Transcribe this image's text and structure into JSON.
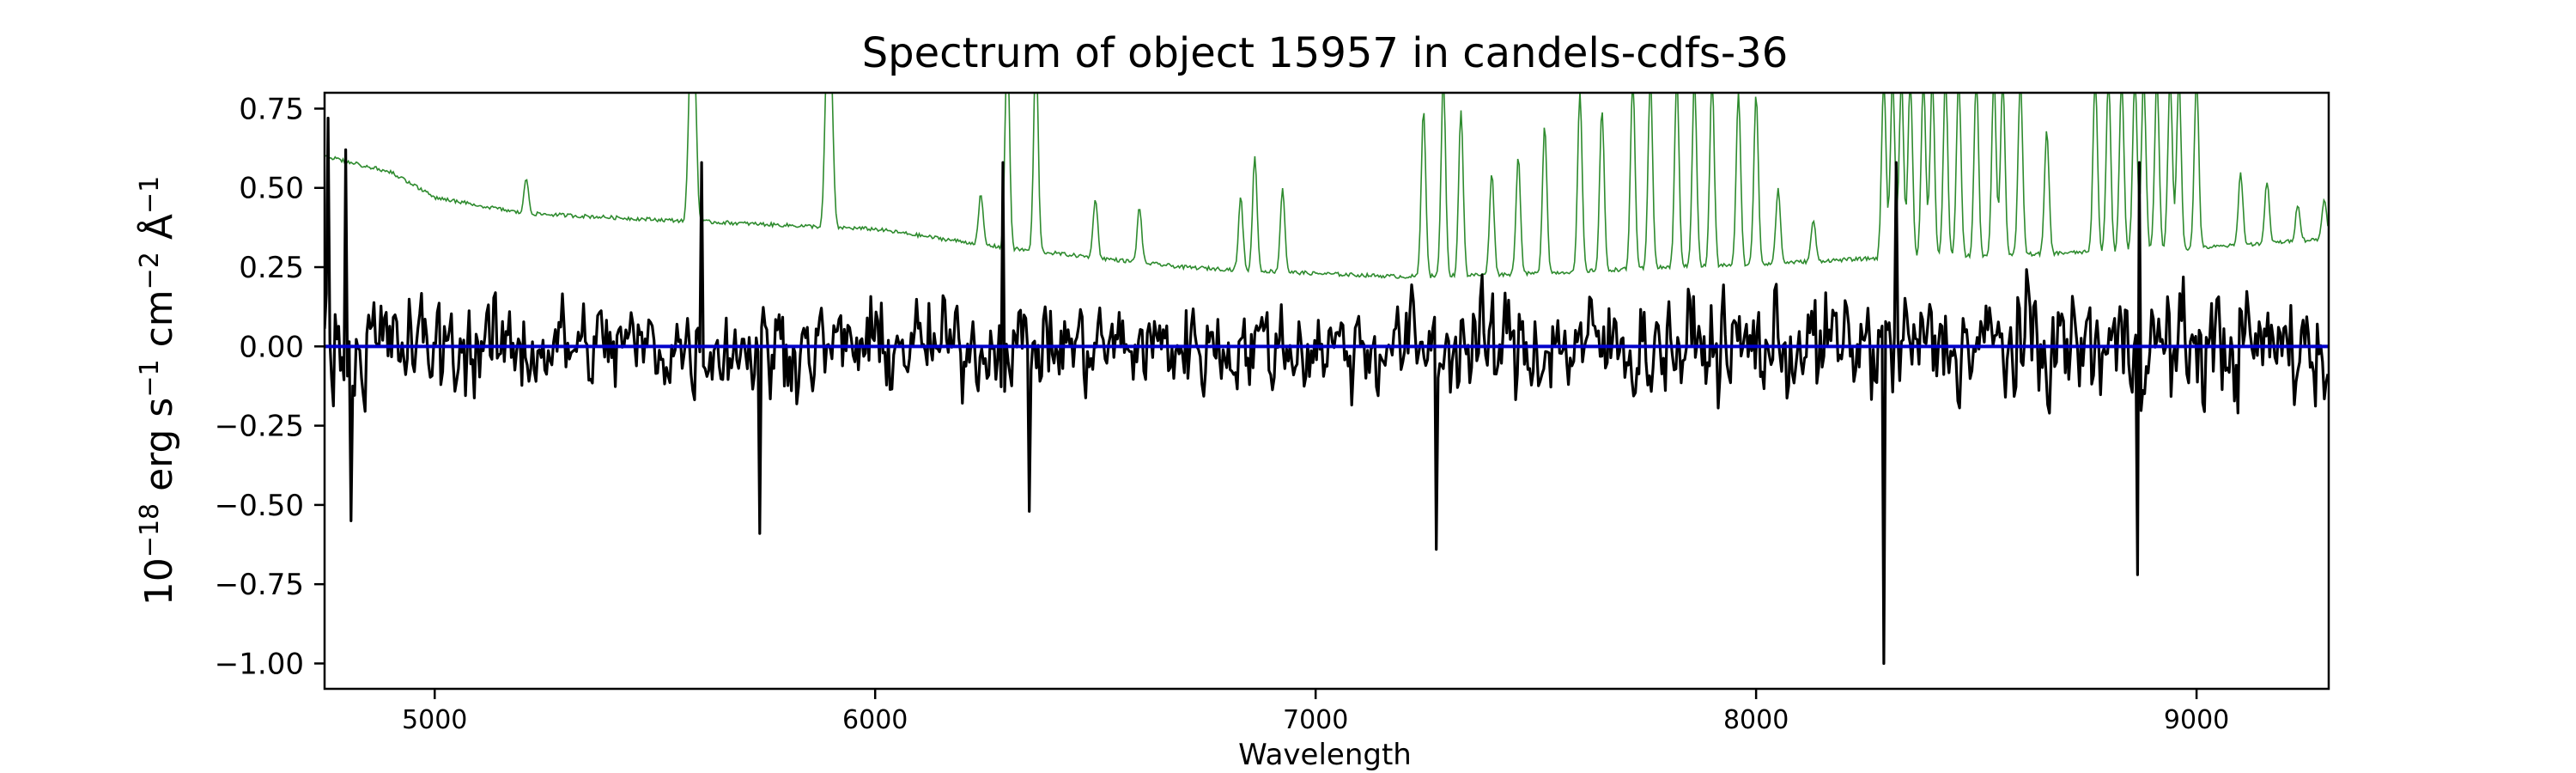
{
  "chart_data": {
    "type": "line",
    "title": "Spectrum of object 15957 in candels-cdfs-36",
    "xlabel": "Wavelength",
    "ylabel_parts": {
      "base": "10",
      "exp1": "−18",
      "erg": " erg s",
      "exp2": "−1",
      "cm": " cm",
      "exp3": "−2",
      "ang": " Å",
      "exp4": "−1"
    },
    "xlim": [
      4750,
      9300
    ],
    "ylim": [
      -1.08,
      0.8
    ],
    "xticks": [
      5000,
      6000,
      7000,
      8000,
      9000
    ],
    "xtick_labels": [
      "5000",
      "6000",
      "7000",
      "8000",
      "9000"
    ],
    "yticks": [
      -1.0,
      -0.75,
      -0.5,
      -0.25,
      0.0,
      0.25,
      0.5,
      0.75
    ],
    "ytick_labels": [
      "−1.00",
      "−0.75",
      "−0.50",
      "−0.25",
      "0.00",
      "0.25",
      "0.50",
      "0.75"
    ],
    "grid": false,
    "series": [
      {
        "role": "flux",
        "color": "#000000",
        "x_start": 4750,
        "x_end": 9300,
        "x_step": 4,
        "noise_anchors": [
          [
            4750,
            0.3
          ],
          [
            5000,
            0.26
          ],
          [
            6000,
            0.22
          ],
          [
            7000,
            0.24
          ],
          [
            7500,
            0.28
          ],
          [
            8000,
            0.26
          ],
          [
            8500,
            0.3
          ],
          [
            9300,
            0.3
          ]
        ],
        "notable_points": [
          [
            4757,
            0.72
          ],
          [
            4800,
            0.62
          ],
          [
            4812,
            -0.55
          ],
          [
            5605,
            0.58
          ],
          [
            5740,
            -0.59
          ],
          [
            6290,
            0.58
          ],
          [
            6350,
            -0.52
          ],
          [
            7275,
            -0.64
          ],
          [
            8290,
            -1.0
          ],
          [
            8320,
            0.58
          ],
          [
            8865,
            -0.72
          ],
          [
            8870,
            0.58
          ]
        ]
      },
      {
        "role": "zero",
        "color": "#0000cc",
        "x": [
          4750,
          9300
        ],
        "y": [
          0.0,
          0.0
        ]
      },
      {
        "role": "error",
        "color": "#2e8b2e",
        "continuum": [
          [
            4750,
            0.6
          ],
          [
            4900,
            0.55
          ],
          [
            5000,
            0.47
          ],
          [
            5200,
            0.42
          ],
          [
            5500,
            0.4
          ],
          [
            6000,
            0.37
          ],
          [
            6100,
            0.35
          ],
          [
            6300,
            0.31
          ],
          [
            6500,
            0.28
          ],
          [
            6700,
            0.25
          ],
          [
            7000,
            0.23
          ],
          [
            7200,
            0.22
          ],
          [
            7500,
            0.23
          ],
          [
            7800,
            0.25
          ],
          [
            8000,
            0.26
          ],
          [
            8300,
            0.28
          ],
          [
            8600,
            0.29
          ],
          [
            9000,
            0.31
          ],
          [
            9300,
            0.34
          ]
        ],
        "spikes": [
          [
            5208,
            0.53
          ],
          [
            5580,
            0.85
          ],
          [
            5590,
            0.85
          ],
          [
            5890,
            0.85
          ],
          [
            5900,
            0.85
          ],
          [
            6240,
            0.48
          ],
          [
            6300,
            0.95
          ],
          [
            6365,
            0.95
          ],
          [
            6500,
            0.47
          ],
          [
            6600,
            0.44
          ],
          [
            6830,
            0.47
          ],
          [
            6862,
            0.6
          ],
          [
            6925,
            0.5
          ],
          [
            7245,
            0.75
          ],
          [
            7290,
            0.85
          ],
          [
            7330,
            0.75
          ],
          [
            7400,
            0.55
          ],
          [
            7460,
            0.6
          ],
          [
            7520,
            0.7
          ],
          [
            7600,
            0.8
          ],
          [
            7650,
            0.75
          ],
          [
            7720,
            0.85
          ],
          [
            7760,
            0.85
          ],
          [
            7820,
            0.85
          ],
          [
            7860,
            0.85
          ],
          [
            7900,
            0.85
          ],
          [
            7960,
            0.8
          ],
          [
            8000,
            0.8
          ],
          [
            8050,
            0.5
          ],
          [
            8130,
            0.4
          ],
          [
            8290,
            0.85
          ],
          [
            8310,
            0.85
          ],
          [
            8330,
            0.85
          ],
          [
            8350,
            0.85
          ],
          [
            8380,
            0.85
          ],
          [
            8400,
            0.85
          ],
          [
            8430,
            0.85
          ],
          [
            8460,
            0.85
          ],
          [
            8500,
            0.85
          ],
          [
            8540,
            0.85
          ],
          [
            8560,
            0.85
          ],
          [
            8600,
            0.85
          ],
          [
            8660,
            0.68
          ],
          [
            8770,
            0.85
          ],
          [
            8800,
            0.85
          ],
          [
            8830,
            0.85
          ],
          [
            8860,
            0.85
          ],
          [
            8880,
            0.85
          ],
          [
            8910,
            0.85
          ],
          [
            8940,
            0.85
          ],
          [
            8960,
            0.85
          ],
          [
            9000,
            0.85
          ],
          [
            9100,
            0.55
          ],
          [
            9160,
            0.52
          ],
          [
            9230,
            0.45
          ],
          [
            9290,
            0.47
          ]
        ]
      }
    ]
  }
}
